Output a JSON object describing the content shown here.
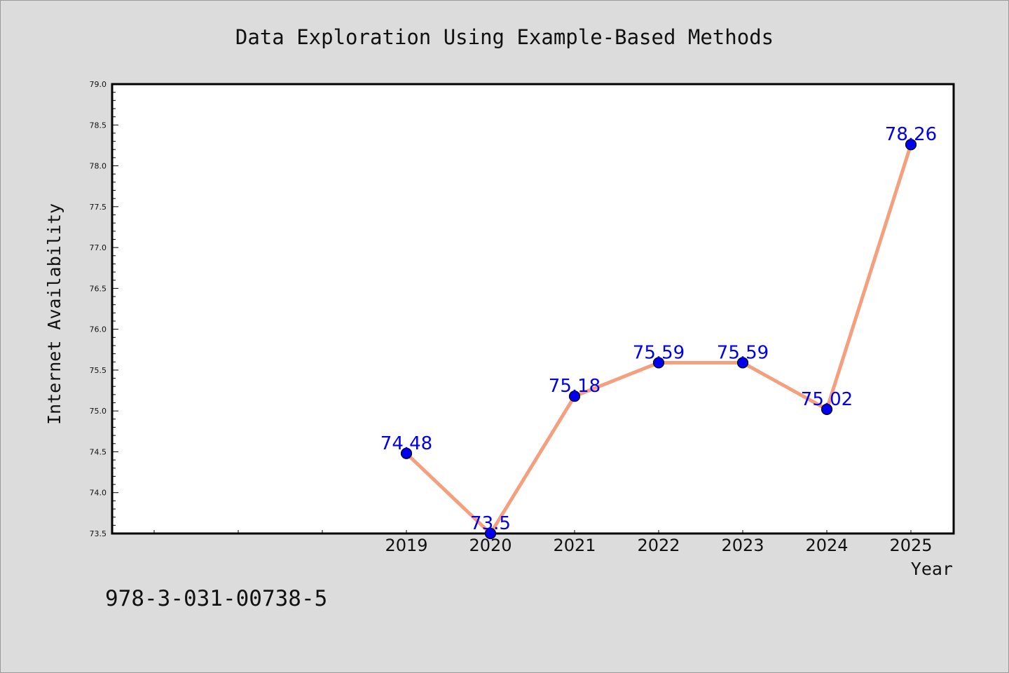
{
  "footer": {
    "isbn": "978-3-031-00738-5"
  },
  "chart_data": {
    "type": "line",
    "title": "Data Exploration Using Example-Based Methods",
    "xlabel": "Year",
    "ylabel": "Internet Availability",
    "categories": [
      "2019",
      "2020",
      "2021",
      "2022",
      "2023",
      "2024",
      "2025"
    ],
    "series": [
      {
        "values": [
          74.48,
          73.5,
          75.18,
          75.59,
          75.59,
          75.02,
          78.26
        ],
        "labels": [
          "74.48",
          "73.5",
          "75.18",
          "75.59",
          "75.59",
          "75.02",
          "78.26"
        ]
      }
    ],
    "ylim": [
      73.5,
      79.0
    ],
    "yticks": [
      "73.5",
      "74.0",
      "74.5",
      "75.0",
      "75.5",
      "76.0",
      "76.5",
      "77.0",
      "77.5",
      "78.0",
      "78.5",
      "79.0"
    ],
    "grid": false,
    "legend": "none",
    "colors": {
      "line": "#f4a07e",
      "marker": "#0000ee",
      "marker_edge": "#000000",
      "label": "#0000ee",
      "plot_bg": "#ffffff",
      "page_bg": "#dcdcdc"
    }
  }
}
